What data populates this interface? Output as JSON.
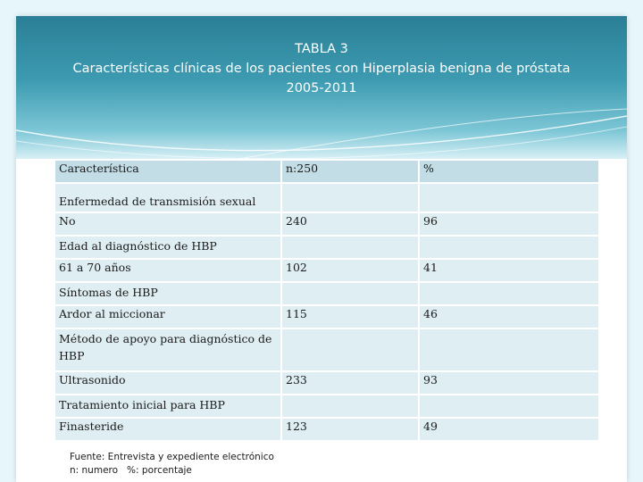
{
  "title": {
    "line1": "TABLA 3",
    "line2": "Características clínicas de los pacientes con Hiperplasia benigna de próstata",
    "line3": "2005-2011"
  },
  "table": {
    "headers": [
      "Característica",
      "n:250",
      "%"
    ],
    "rows": [
      {
        "label": "Enfermedad de transmisión sexual",
        "n": "",
        "pct": ""
      },
      {
        "label": "No",
        "n": "240",
        "pct": "96"
      },
      {
        "label": "Edad al diagnóstico de HBP",
        "n": "",
        "pct": ""
      },
      {
        "label": "61 a 70 años",
        "n": "102",
        "pct": "41"
      },
      {
        "label": "Síntomas de HBP",
        "n": "",
        "pct": ""
      },
      {
        "label": "Ardor al miccionar",
        "n": "115",
        "pct": "46"
      },
      {
        "label": "Método de apoyo para diagnóstico de HBP",
        "n": "",
        "pct": ""
      },
      {
        "label": "Ultrasonido",
        "n": "233",
        "pct": "93"
      },
      {
        "label": "Tratamiento inicial para HBP",
        "n": "",
        "pct": ""
      },
      {
        "label": "Finasteride",
        "n": "123",
        "pct": "49"
      }
    ]
  },
  "footer": {
    "line1": "Fuente: Entrevista y expediente electrónico",
    "line2a": "n: numero",
    "line2b": "%: porcentaje"
  },
  "colors": {
    "background": "#e6f6fb",
    "header_band": "#3d9bb1",
    "cell": "#dfeef3",
    "header_cell": "#c2dde6"
  }
}
